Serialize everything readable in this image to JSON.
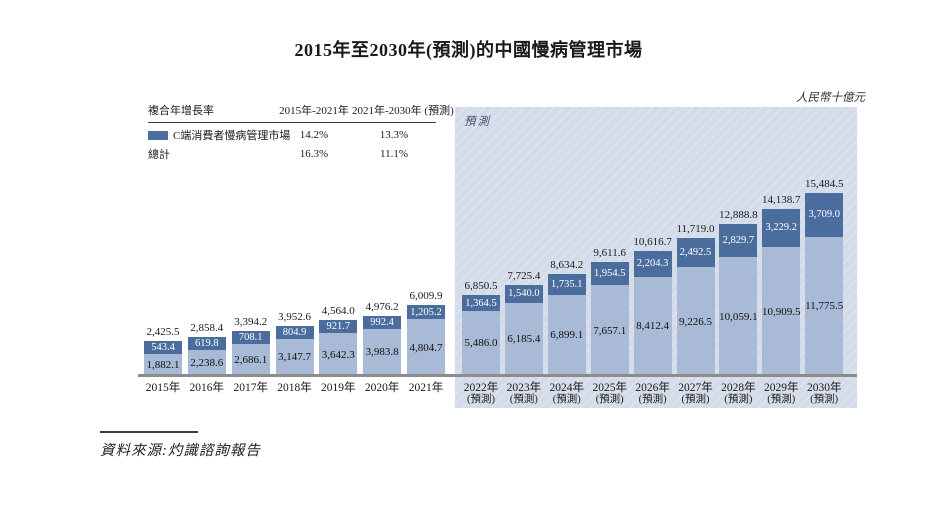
{
  "page": {
    "title": "2015年至2030年(預測)的中國慢病管理市場",
    "unit_label": "人民幣十億元",
    "forecast_label": "預測",
    "source": "資料來源:灼識諮詢報告"
  },
  "legend": {
    "col_headers": [
      "複合年增長率",
      "2015年-2021年",
      "2021年-2030年 (預測)"
    ],
    "rows": [
      {
        "label": "C端消費者慢病管理市場",
        "val1": "14.2%",
        "val2": "13.3%"
      },
      {
        "label": "總計",
        "val1": "16.3%",
        "val2": "11.1%"
      }
    ]
  },
  "colors": {
    "c_segment": "#4a6d9d",
    "base_segment": "#a8bad5",
    "forecast_bg": "#d4dce9",
    "axis": "#8c8c8c"
  },
  "chart_data": {
    "type": "bar",
    "stacked": true,
    "title": "2015年至2030年(預測)的中國慢病管理市場",
    "ylabel": "人民幣十億元",
    "ylim": [
      0,
      16000
    ],
    "grid": false,
    "legend_position": "top-left",
    "categories": [
      "2015年",
      "2016年",
      "2017年",
      "2018年",
      "2019年",
      "2020年",
      "2021年",
      "2022年",
      "2023年",
      "2024年",
      "2025年",
      "2026年",
      "2027年",
      "2028年",
      "2029年",
      "2030年"
    ],
    "forecast_start_index": 7,
    "forecast_suffix": "(預測)",
    "series": [
      {
        "name": "C端消費者慢病管理市場",
        "role": "top-segment",
        "color": "#4a6d9d",
        "values": [
          543.4,
          619.8,
          708.1,
          804.9,
          921.7,
          992.4,
          1205.2,
          1364.5,
          1540.0,
          1735.1,
          1954.5,
          2204.3,
          2492.5,
          2829.7,
          3229.2,
          3709.0
        ]
      },
      {
        "name": "",
        "role": "base-segment",
        "color": "#a8bad5",
        "values": [
          1882.1,
          2238.6,
          2686.1,
          3147.7,
          3642.3,
          3983.8,
          4804.7,
          5486.0,
          6185.4,
          6899.1,
          7657.1,
          8412.4,
          9226.5,
          10059.1,
          10909.5,
          11775.5
        ]
      }
    ],
    "totals": [
      2425.5,
      2858.4,
      3394.2,
      3952.6,
      4564.0,
      4976.2,
      6009.9,
      6850.5,
      7725.4,
      8634.2,
      9611.6,
      10616.7,
      11719.0,
      12888.8,
      14138.7,
      15484.5
    ],
    "cagr": [
      {
        "series": "C端消費者慢病管理市場",
        "2015-2021": "14.2%",
        "2021-2030": "13.3%"
      },
      {
        "series": "總計",
        "2015-2021": "16.3%",
        "2021-2030": "11.1%"
      }
    ]
  }
}
